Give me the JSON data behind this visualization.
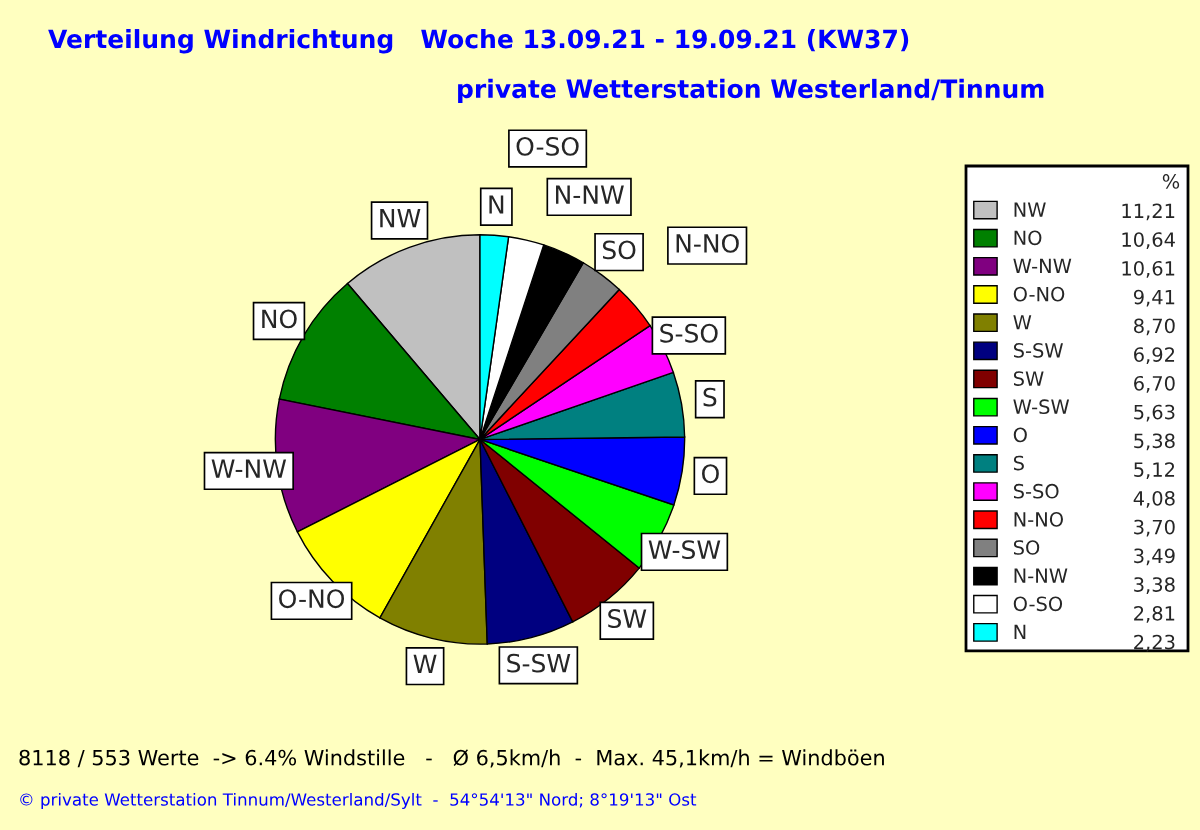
{
  "chart_data": {
    "type": "pie",
    "title": "Verteilung Windrichtung   Woche 13.09.21 - 19.09.21 (KW37)",
    "subtitle": "private Wetterstation Westerland/Tinnum",
    "legend_title": "%",
    "legend": "right",
    "categories": [
      "NW",
      "NO",
      "W-NW",
      "O-NO",
      "W",
      "S-SW",
      "SW",
      "W-SW",
      "O",
      "S",
      "S-SO",
      "N-NO",
      "SO",
      "N-NW",
      "O-SO",
      "N"
    ],
    "values": [
      11.21,
      10.64,
      10.61,
      9.41,
      8.7,
      6.92,
      6.7,
      5.63,
      5.38,
      5.12,
      4.08,
      3.7,
      3.49,
      3.38,
      2.81,
      2.23
    ],
    "value_labels": [
      "11,21",
      "10,64",
      "10,61",
      "9,41",
      "8,70",
      "6,92",
      "6,70",
      "5,63",
      "5,38",
      "5,12",
      "4,08",
      "3,70",
      "3,49",
      "3,38",
      "2,81",
      "2,23"
    ],
    "colors": [
      "#c0c0c0",
      "#008000",
      "#800080",
      "#ffff00",
      "#808000",
      "#000080",
      "#800000",
      "#00ff00",
      "#0000ff",
      "#008080",
      "#ff00ff",
      "#ff0000",
      "#808080",
      "#000000",
      "#ffffff",
      "#00ffff"
    ],
    "annotations": [
      "8118 / 553 Werte  -> 6.4% Windstille   -   Ø 6,5km/h  -  Max. 45,1km/h = Windböen",
      "© private Wetterstation Tinnum/Westerland/Sylt  -  54°54'13\" Nord; 8°19'13\" Ost"
    ]
  }
}
